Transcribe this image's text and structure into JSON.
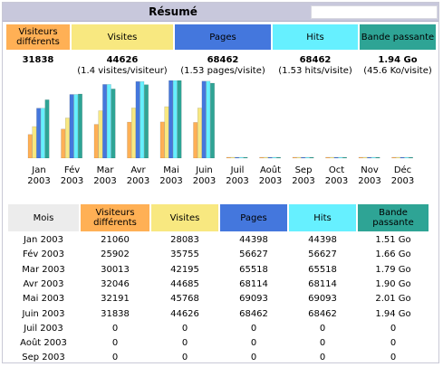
{
  "title": "Résumé",
  "colors": {
    "visitors": "#ffb055",
    "visits": "#f8e880",
    "pages": "#4477dd",
    "hits": "#66f0ff",
    "bandwidth": "#2ea495",
    "header_neutral": "#ececec"
  },
  "summary": {
    "headers": {
      "visitors": "Visiteurs différents",
      "visits": "Visites",
      "pages": "Pages",
      "hits": "Hits",
      "bandwidth": "Bande passante"
    },
    "values": {
      "visitors": "31838",
      "visits": "44626",
      "visits_sub": "(1.4 visites/visiteur)",
      "pages": "68462",
      "pages_sub": "(1.53 pages/visite)",
      "hits": "68462",
      "hits_sub": "(1.53 hits/visite)",
      "bandwidth": "1.94 Go",
      "bandwidth_sub": "(45.6 Ko/visite)"
    }
  },
  "chart_data": {
    "type": "bar",
    "categories": [
      "Jan 2003",
      "Fév 2003",
      "Mar 2003",
      "Avr 2003",
      "Mai 2003",
      "Juin 2003",
      "Juil 2003",
      "Août 2003",
      "Sep 2003",
      "Oct 2003",
      "Nov 2003",
      "Déc 2003"
    ],
    "month_labels": [
      [
        "Jan",
        "2003"
      ],
      [
        "Fév",
        "2003"
      ],
      [
        "Mar",
        "2003"
      ],
      [
        "Avr",
        "2003"
      ],
      [
        "Mai",
        "2003"
      ],
      [
        "Juin",
        "2003"
      ],
      [
        "Juil",
        "2003"
      ],
      [
        "Août",
        "2003"
      ],
      [
        "Sep",
        "2003"
      ],
      [
        "Oct",
        "2003"
      ],
      [
        "Nov",
        "2003"
      ],
      [
        "Déc",
        "2003"
      ]
    ],
    "series": [
      {
        "name": "Visiteurs différents",
        "color": "#ffb055",
        "values": [
          21060,
          25902,
          30013,
          32046,
          32191,
          31838,
          0,
          0,
          0,
          0,
          0,
          0
        ]
      },
      {
        "name": "Visites",
        "color": "#f8e880",
        "values": [
          28083,
          35755,
          42195,
          44685,
          45768,
          44626,
          0,
          0,
          0,
          0,
          0,
          0
        ]
      },
      {
        "name": "Pages",
        "color": "#4477dd",
        "values": [
          44398,
          56627,
          65518,
          68114,
          69093,
          68462,
          0,
          0,
          0,
          0,
          0,
          0
        ]
      },
      {
        "name": "Hits",
        "color": "#66f0ff",
        "values": [
          44398,
          56627,
          65518,
          68114,
          69093,
          68462,
          0,
          0,
          0,
          0,
          0,
          0
        ]
      },
      {
        "name": "Bande passante",
        "color": "#2ea495",
        "values": [
          1.51,
          1.66,
          1.79,
          1.9,
          2.01,
          1.94,
          0,
          0,
          0,
          0,
          0,
          0
        ]
      }
    ],
    "ylim": [
      0,
      69093
    ]
  },
  "table": {
    "headers": {
      "month": "Mois",
      "visitors": "Visiteurs différents",
      "visits": "Visites",
      "pages": "Pages",
      "hits": "Hits",
      "bandwidth": "Bande passante"
    },
    "rows": [
      {
        "month": "Jan 2003",
        "visitors": "21060",
        "visits": "28083",
        "pages": "44398",
        "hits": "44398",
        "bandwidth": "1.51 Go"
      },
      {
        "month": "Fév 2003",
        "visitors": "25902",
        "visits": "35755",
        "pages": "56627",
        "hits": "56627",
        "bandwidth": "1.66 Go"
      },
      {
        "month": "Mar 2003",
        "visitors": "30013",
        "visits": "42195",
        "pages": "65518",
        "hits": "65518",
        "bandwidth": "1.79 Go"
      },
      {
        "month": "Avr 2003",
        "visitors": "32046",
        "visits": "44685",
        "pages": "68114",
        "hits": "68114",
        "bandwidth": "1.90 Go"
      },
      {
        "month": "Mai 2003",
        "visitors": "32191",
        "visits": "45768",
        "pages": "69093",
        "hits": "69093",
        "bandwidth": "2.01 Go"
      },
      {
        "month": "Juin 2003",
        "visitors": "31838",
        "visits": "44626",
        "pages": "68462",
        "hits": "68462",
        "bandwidth": "1.94 Go"
      },
      {
        "month": "Juil 2003",
        "visitors": "0",
        "visits": "0",
        "pages": "0",
        "hits": "0",
        "bandwidth": "0"
      },
      {
        "month": "Août 2003",
        "visitors": "0",
        "visits": "0",
        "pages": "0",
        "hits": "0",
        "bandwidth": "0"
      },
      {
        "month": "Sep 2003",
        "visitors": "0",
        "visits": "0",
        "pages": "0",
        "hits": "0",
        "bandwidth": "0"
      }
    ]
  }
}
